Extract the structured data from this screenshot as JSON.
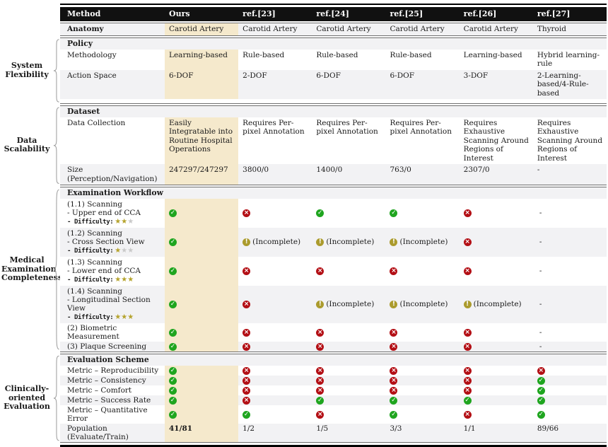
{
  "columns": [
    "Method",
    "Ours",
    "ref.[23]",
    "ref.[24]",
    "ref.[25]",
    "ref.[26]",
    "ref.[27]"
  ],
  "labels": {
    "difficulty": "- Difficulty:"
  },
  "icons": {
    "check": {
      "glyph": "✓",
      "color": "#1fa51f"
    },
    "cross": {
      "glyph": "×",
      "color": "#b30f15"
    },
    "incomplete": {
      "glyph": "!",
      "color": "#ab9b2d"
    },
    "star": {
      "glyph": "★",
      "filled_color": "#b5a32c",
      "empty_color": "#c9c9c9"
    }
  },
  "colors": {
    "highlight": "#f5e9cc",
    "header_bg": "#111111",
    "stripe": "#f2f2f4"
  },
  "sections": [
    {
      "id": "anatomy",
      "side_label": "",
      "rows": [
        {
          "label": {
            "text": "Anatomy"
          },
          "cells": [
            {
              "text": "Carotid Artery"
            },
            {
              "text": "Carotid Artery"
            },
            {
              "text": "Carotid Artery"
            },
            {
              "text": "Carotid Artery"
            },
            {
              "text": "Carotid Artery"
            },
            {
              "text": "Thyroid"
            }
          ]
        }
      ]
    },
    {
      "id": "policy",
      "side_label": "System Flexibility",
      "header": "Policy",
      "rows": [
        {
          "label": {
            "text": "Methodology"
          },
          "cells": [
            {
              "text": "Learning-based"
            },
            {
              "text": "Rule-based"
            },
            {
              "text": "Rule-based"
            },
            {
              "text": "Rule-based"
            },
            {
              "text": "Learning-based"
            },
            {
              "text": "Hybrid learning-rule"
            }
          ]
        },
        {
          "label": {
            "text": "Action Space"
          },
          "cells": [
            {
              "text": "6-DOF"
            },
            {
              "text": "2-DOF"
            },
            {
              "text": "6-DOF"
            },
            {
              "text": "6-DOF"
            },
            {
              "text": "3-DOF"
            },
            {
              "text": "2-Learning-based/4-Rule-based"
            }
          ]
        }
      ]
    },
    {
      "id": "dataset",
      "side_label": "Data Scalability",
      "header": "Dataset",
      "rows": [
        {
          "label": {
            "text": "Data Collection"
          },
          "cells": [
            {
              "text": "Easily Integratable into Routine Hospital Operations"
            },
            {
              "text": "Requires Per-pixel Annotation"
            },
            {
              "text": "Requires Per-pixel Annotation"
            },
            {
              "text": "Requires Per-pixel Annotation"
            },
            {
              "text": "Requires Exhaustive Scanning Around Regions of Interest"
            },
            {
              "text": "Requires Exhaustive Scanning Around Regions of Interest"
            }
          ]
        },
        {
          "label": {
            "text": "Size (Perception/Navigation)"
          },
          "cells": [
            {
              "text": "247297/247297"
            },
            {
              "text": "3800/0"
            },
            {
              "text": "1400/0"
            },
            {
              "text": "763/0"
            },
            {
              "text": "2307/0"
            },
            {
              "text": "-"
            }
          ]
        }
      ]
    },
    {
      "id": "examination-workflow",
      "side_label": "Medical Examination Completeness",
      "header": "Examination Workflow",
      "rows": [
        {
          "label": {
            "lines": [
              "(1.1) Scanning",
              "- Upper end of CCA"
            ],
            "difficulty": {
              "filled": 2,
              "total": 3
            }
          },
          "cells": [
            {
              "icon": "check"
            },
            {
              "icon": "cross"
            },
            {
              "icon": "check"
            },
            {
              "icon": "check"
            },
            {
              "icon": "cross"
            },
            {
              "text": "-"
            }
          ]
        },
        {
          "label": {
            "lines": [
              "(1.2) Scanning",
              "- Cross Section View"
            ],
            "difficulty": {
              "filled": 1,
              "total": 3
            }
          },
          "cells": [
            {
              "icon": "check"
            },
            {
              "icon": "incomplete",
              "text": "(Incomplete)"
            },
            {
              "icon": "incomplete",
              "text": "(Incomplete)"
            },
            {
              "icon": "incomplete",
              "text": "(Incomplete)"
            },
            {
              "icon": "cross"
            },
            {
              "text": "-"
            }
          ]
        },
        {
          "label": {
            "lines": [
              "(1.3) Scanning",
              "- Lower end of CCA"
            ],
            "difficulty": {
              "filled": 3,
              "total": 3
            }
          },
          "cells": [
            {
              "icon": "check"
            },
            {
              "icon": "cross"
            },
            {
              "icon": "cross"
            },
            {
              "icon": "cross"
            },
            {
              "icon": "cross"
            },
            {
              "text": "-"
            }
          ]
        },
        {
          "label": {
            "lines": [
              "(1.4) Scanning",
              "- Longitudinal Section View"
            ],
            "difficulty": {
              "filled": 3,
              "total": 3
            }
          },
          "cells": [
            {
              "icon": "check"
            },
            {
              "icon": "cross"
            },
            {
              "icon": "incomplete",
              "text": "(Incomplete)"
            },
            {
              "icon": "incomplete",
              "text": "(Incomplete)"
            },
            {
              "icon": "incomplete",
              "text": "(Incomplete)"
            },
            {
              "text": "-"
            }
          ]
        },
        {
          "label": {
            "text": "(2) Biometric Measurement"
          },
          "cells": [
            {
              "icon": "check"
            },
            {
              "icon": "cross"
            },
            {
              "icon": "cross"
            },
            {
              "icon": "cross"
            },
            {
              "icon": "cross"
            },
            {
              "text": "-"
            }
          ]
        },
        {
          "label": {
            "text": "(3) Plaque Screening"
          },
          "cells": [
            {
              "icon": "check"
            },
            {
              "icon": "cross"
            },
            {
              "icon": "cross"
            },
            {
              "icon": "cross"
            },
            {
              "icon": "cross"
            },
            {
              "text": "-"
            }
          ]
        }
      ]
    },
    {
      "id": "evaluation-scheme",
      "side_label": "Clinically-oriented Evaluation",
      "header": "Evaluation Scheme",
      "rows": [
        {
          "label": {
            "text": "Metric – Reproducibility"
          },
          "cells": [
            {
              "icon": "check"
            },
            {
              "icon": "cross"
            },
            {
              "icon": "cross"
            },
            {
              "icon": "cross"
            },
            {
              "icon": "cross"
            },
            {
              "icon": "cross"
            }
          ]
        },
        {
          "label": {
            "text": "Metric – Consistency"
          },
          "cells": [
            {
              "icon": "check"
            },
            {
              "icon": "cross"
            },
            {
              "icon": "cross"
            },
            {
              "icon": "cross"
            },
            {
              "icon": "cross"
            },
            {
              "icon": "check"
            }
          ]
        },
        {
          "label": {
            "text": "Metric – Comfort"
          },
          "cells": [
            {
              "icon": "check"
            },
            {
              "icon": "cross"
            },
            {
              "icon": "cross"
            },
            {
              "icon": "cross"
            },
            {
              "icon": "cross"
            },
            {
              "icon": "check"
            }
          ]
        },
        {
          "label": {
            "text": "Metric – Success Rate"
          },
          "cells": [
            {
              "icon": "check"
            },
            {
              "icon": "cross"
            },
            {
              "icon": "check"
            },
            {
              "icon": "check"
            },
            {
              "icon": "check"
            },
            {
              "icon": "check"
            }
          ]
        },
        {
          "label": {
            "text": "Metric – Quantitative Error"
          },
          "cells": [
            {
              "icon": "check"
            },
            {
              "icon": "check"
            },
            {
              "icon": "cross"
            },
            {
              "icon": "check"
            },
            {
              "icon": "cross"
            },
            {
              "icon": "check"
            }
          ]
        },
        {
          "label": {
            "text": "Population (Evaluate/Train)"
          },
          "cells": [
            {
              "text": "41/81"
            },
            {
              "text": "1/2"
            },
            {
              "text": "1/5"
            },
            {
              "text": "3/3"
            },
            {
              "text": "1/1"
            },
            {
              "text": "89/66"
            }
          ]
        }
      ]
    }
  ]
}
